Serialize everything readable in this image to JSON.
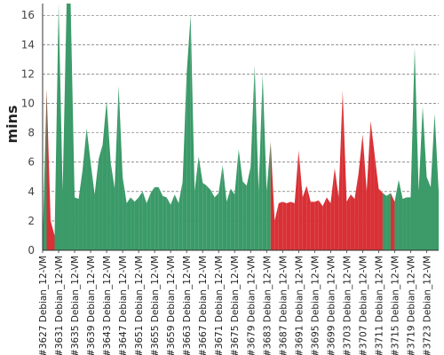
{
  "chart_data": {
    "type": "area",
    "title": "",
    "xlabel": "",
    "ylabel": "mins",
    "ylim": [
      0,
      16.8
    ],
    "yticks": [
      0,
      2,
      4,
      6,
      8,
      10,
      12,
      14,
      16
    ],
    "grid": true,
    "legend": "none",
    "colors": {
      "success": "#3a9a68",
      "failure": "#d93035"
    },
    "x_labels": [
      "#3627 Debian_12-VM",
      "#3631 Debian_12-VM",
      "#3635 Debian_12-VM",
      "#3639 Debian_12-VM",
      "#3643 Debian_12-VM",
      "#3647 Debian_12-VM",
      "#3651 Debian_12-VM",
      "#3655 Debian_12-VM",
      "#3659 Debian_12-VM",
      "#3663 Debian_12-VM",
      "#3667 Debian_12-VM",
      "#3671 Debian_12-VM",
      "#3675 Debian_12-VM",
      "#3679 Debian_12-VM",
      "#3683 Debian_12-VM",
      "#3687 Debian_12-VM",
      "#3691 Debian_12-VM",
      "#3695 Debian_12-VM",
      "#3699 Debian_12-VM",
      "#3703 Debian_12-VM",
      "#3707 Debian_12-VM",
      "#3711 Debian_12-VM",
      "#3715 Debian_12-VM",
      "#3719 Debian_12-VM",
      "#3723 Debian_12-VM"
    ],
    "x_start": 3627,
    "x_end": 3726,
    "points": [
      [
        3627,
        0.5,
        "success"
      ],
      [
        3628,
        11.0,
        "success"
      ],
      [
        3629,
        2.0,
        "failure"
      ],
      [
        3630,
        1.0,
        "failure"
      ],
      [
        3631,
        16.8,
        "success"
      ],
      [
        3632,
        4.0,
        "success"
      ],
      [
        3633,
        16.8,
        "success"
      ],
      [
        3634,
        16.8,
        "success"
      ],
      [
        3635,
        3.6,
        "success"
      ],
      [
        3636,
        3.5,
        "success"
      ],
      [
        3637,
        5.5,
        "success"
      ],
      [
        3638,
        8.3,
        "success"
      ],
      [
        3639,
        6.0,
        "success"
      ],
      [
        3640,
        3.8,
        "success"
      ],
      [
        3641,
        6.2,
        "success"
      ],
      [
        3642,
        7.2,
        "success"
      ],
      [
        3643,
        10.2,
        "success"
      ],
      [
        3644,
        6.0,
        "success"
      ],
      [
        3645,
        4.2,
        "success"
      ],
      [
        3646,
        11.2,
        "success"
      ],
      [
        3647,
        5.0,
        "success"
      ],
      [
        3648,
        3.2,
        "success"
      ],
      [
        3649,
        3.6,
        "success"
      ],
      [
        3650,
        3.3,
        "success"
      ],
      [
        3651,
        3.6,
        "success"
      ],
      [
        3652,
        4.0,
        "success"
      ],
      [
        3653,
        3.2,
        "success"
      ],
      [
        3654,
        3.9,
        "success"
      ],
      [
        3655,
        4.3,
        "success"
      ],
      [
        3656,
        4.3,
        "success"
      ],
      [
        3657,
        3.7,
        "success"
      ],
      [
        3658,
        3.6,
        "success"
      ],
      [
        3659,
        3.1,
        "success"
      ],
      [
        3660,
        3.8,
        "success"
      ],
      [
        3661,
        3.2,
        "success"
      ],
      [
        3662,
        4.7,
        "success"
      ],
      [
        3663,
        12.0,
        "success"
      ],
      [
        3664,
        16.0,
        "success"
      ],
      [
        3665,
        4.0,
        "success"
      ],
      [
        3666,
        6.4,
        "success"
      ],
      [
        3667,
        4.6,
        "success"
      ],
      [
        3668,
        4.4,
        "success"
      ],
      [
        3669,
        4.1,
        "success"
      ],
      [
        3670,
        3.6,
        "success"
      ],
      [
        3671,
        3.9,
        "success"
      ],
      [
        3672,
        5.8,
        "success"
      ],
      [
        3673,
        3.3,
        "success"
      ],
      [
        3674,
        4.2,
        "success"
      ],
      [
        3675,
        3.8,
        "success"
      ],
      [
        3676,
        6.9,
        "success"
      ],
      [
        3677,
        4.7,
        "success"
      ],
      [
        3678,
        4.4,
        "success"
      ],
      [
        3679,
        5.7,
        "success"
      ],
      [
        3680,
        12.6,
        "success"
      ],
      [
        3681,
        4.0,
        "success"
      ],
      [
        3682,
        12.0,
        "success"
      ],
      [
        3683,
        4.0,
        "success"
      ],
      [
        3684,
        7.4,
        "success"
      ],
      [
        3685,
        2.0,
        "failure"
      ],
      [
        3686,
        3.2,
        "failure"
      ],
      [
        3687,
        3.3,
        "failure"
      ],
      [
        3688,
        3.2,
        "failure"
      ],
      [
        3689,
        3.3,
        "failure"
      ],
      [
        3690,
        3.2,
        "failure"
      ],
      [
        3691,
        6.8,
        "failure"
      ],
      [
        3692,
        3.6,
        "failure"
      ],
      [
        3693,
        4.4,
        "failure"
      ],
      [
        3694,
        3.3,
        "failure"
      ],
      [
        3695,
        3.3,
        "failure"
      ],
      [
        3696,
        3.4,
        "failure"
      ],
      [
        3697,
        3.0,
        "failure"
      ],
      [
        3698,
        3.6,
        "failure"
      ],
      [
        3699,
        3.2,
        "failure"
      ],
      [
        3700,
        5.6,
        "failure"
      ],
      [
        3701,
        3.6,
        "failure"
      ],
      [
        3702,
        10.9,
        "failure"
      ],
      [
        3703,
        3.3,
        "failure"
      ],
      [
        3704,
        3.8,
        "failure"
      ],
      [
        3705,
        3.5,
        "failure"
      ],
      [
        3706,
        5.3,
        "failure"
      ],
      [
        3707,
        7.9,
        "failure"
      ],
      [
        3708,
        4.0,
        "failure"
      ],
      [
        3709,
        8.8,
        "failure"
      ],
      [
        3710,
        6.5,
        "failure"
      ],
      [
        3711,
        4.2,
        "failure"
      ],
      [
        3712,
        3.9,
        "failure"
      ],
      [
        3713,
        3.7,
        "success"
      ],
      [
        3714,
        3.9,
        "success"
      ],
      [
        3715,
        3.3,
        "failure"
      ],
      [
        3716,
        4.8,
        "success"
      ],
      [
        3717,
        3.5,
        "success"
      ],
      [
        3718,
        3.6,
        "success"
      ],
      [
        3719,
        3.6,
        "success"
      ],
      [
        3720,
        13.8,
        "success"
      ],
      [
        3721,
        4.0,
        "success"
      ],
      [
        3722,
        9.8,
        "success"
      ],
      [
        3723,
        5.0,
        "success"
      ],
      [
        3724,
        4.3,
        "success"
      ],
      [
        3725,
        9.3,
        "success"
      ],
      [
        3726,
        4.0,
        "success"
      ]
    ]
  }
}
